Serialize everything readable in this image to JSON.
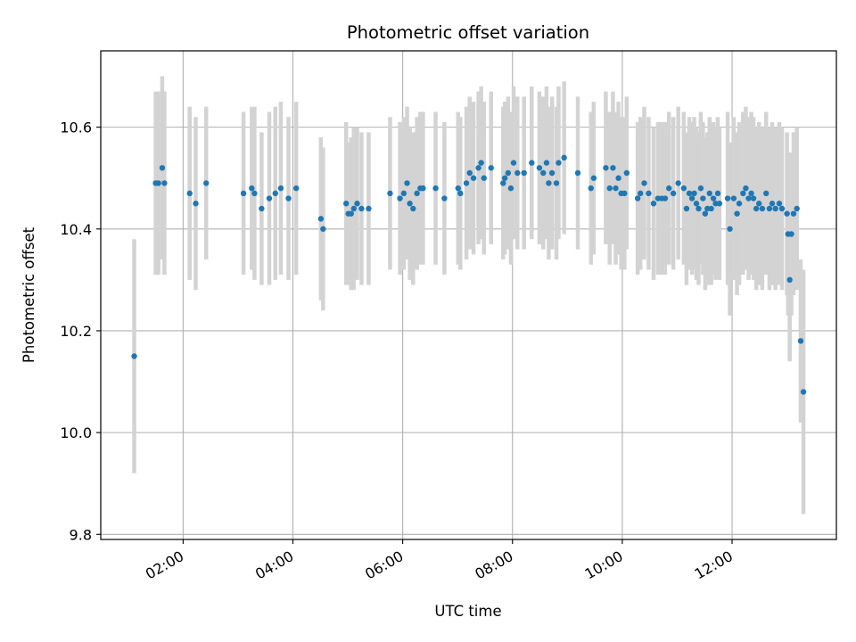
{
  "chart_data": {
    "type": "scatter",
    "title": "Photometric offset variation",
    "xlabel": "UTC time",
    "ylabel": "Photometric offset",
    "grid": true,
    "xlim": [
      0.5,
      13.9
    ],
    "ylim": [
      9.79,
      10.75
    ],
    "x_ticks": [
      {
        "value": 2,
        "label": "02:00"
      },
      {
        "value": 4,
        "label": "04:00"
      },
      {
        "value": 6,
        "label": "06:00"
      },
      {
        "value": 8,
        "label": "08:00"
      },
      {
        "value": 10,
        "label": "10:00"
      },
      {
        "value": 12,
        "label": "12:00"
      }
    ],
    "y_ticks": [
      {
        "value": 9.8,
        "label": "9.8"
      },
      {
        "value": 10.0,
        "label": "10.0"
      },
      {
        "value": 10.2,
        "label": "10.2"
      },
      {
        "value": 10.4,
        "label": "10.4"
      },
      {
        "value": 10.6,
        "label": "10.6"
      }
    ],
    "colors": {
      "point": "#1f77b4",
      "errorbar": "#d3d3d3",
      "grid": "#b0b0b0"
    },
    "points": [
      [
        1.11,
        10.15,
        0.23
      ],
      [
        1.5,
        10.49,
        0.18
      ],
      [
        1.55,
        10.49,
        0.18
      ],
      [
        1.62,
        10.52,
        0.18
      ],
      [
        1.66,
        10.49,
        0.18
      ],
      [
        2.12,
        10.47,
        0.17
      ],
      [
        2.23,
        10.45,
        0.17
      ],
      [
        2.42,
        10.49,
        0.15
      ],
      [
        3.1,
        10.47,
        0.16
      ],
      [
        3.25,
        10.48,
        0.16
      ],
      [
        3.3,
        10.47,
        0.17
      ],
      [
        3.43,
        10.44,
        0.15
      ],
      [
        3.57,
        10.46,
        0.17
      ],
      [
        3.68,
        10.47,
        0.17
      ],
      [
        3.78,
        10.48,
        0.17
      ],
      [
        3.92,
        10.46,
        0.16
      ],
      [
        4.06,
        10.48,
        0.17
      ],
      [
        4.51,
        10.42,
        0.16
      ],
      [
        4.55,
        10.4,
        0.16
      ],
      [
        4.97,
        10.45,
        0.16
      ],
      [
        5.01,
        10.43,
        0.14
      ],
      [
        5.06,
        10.43,
        0.15
      ],
      [
        5.11,
        10.44,
        0.16
      ],
      [
        5.17,
        10.45,
        0.15
      ],
      [
        5.25,
        10.44,
        0.15
      ],
      [
        5.38,
        10.44,
        0.15
      ],
      [
        5.77,
        10.47,
        0.15
      ],
      [
        5.95,
        10.46,
        0.15
      ],
      [
        6.02,
        10.47,
        0.15
      ],
      [
        6.08,
        10.49,
        0.15
      ],
      [
        6.13,
        10.45,
        0.15
      ],
      [
        6.19,
        10.44,
        0.15
      ],
      [
        6.26,
        10.47,
        0.15
      ],
      [
        6.32,
        10.48,
        0.15
      ],
      [
        6.37,
        10.48,
        0.15
      ],
      [
        6.6,
        10.48,
        0.15
      ],
      [
        6.76,
        10.46,
        0.15
      ],
      [
        7.01,
        10.48,
        0.15
      ],
      [
        7.05,
        10.47,
        0.15
      ],
      [
        7.16,
        10.49,
        0.15
      ],
      [
        7.22,
        10.51,
        0.15
      ],
      [
        7.29,
        10.5,
        0.15
      ],
      [
        7.38,
        10.52,
        0.15
      ],
      [
        7.43,
        10.53,
        0.15
      ],
      [
        7.48,
        10.5,
        0.15
      ],
      [
        7.61,
        10.52,
        0.15
      ],
      [
        7.83,
        10.49,
        0.15
      ],
      [
        7.86,
        10.5,
        0.15
      ],
      [
        7.92,
        10.51,
        0.15
      ],
      [
        7.97,
        10.48,
        0.15
      ],
      [
        8.02,
        10.53,
        0.15
      ],
      [
        8.09,
        10.51,
        0.15
      ],
      [
        8.21,
        10.51,
        0.15
      ],
      [
        8.35,
        10.53,
        0.15
      ],
      [
        8.49,
        10.52,
        0.15
      ],
      [
        8.56,
        10.51,
        0.15
      ],
      [
        8.62,
        10.53,
        0.15
      ],
      [
        8.66,
        10.49,
        0.15
      ],
      [
        8.72,
        10.51,
        0.15
      ],
      [
        8.8,
        10.49,
        0.15
      ],
      [
        8.84,
        10.53,
        0.15
      ],
      [
        8.94,
        10.54,
        0.15
      ],
      [
        9.19,
        10.51,
        0.15
      ],
      [
        9.43,
        10.48,
        0.15
      ],
      [
        9.48,
        10.5,
        0.15
      ],
      [
        9.7,
        10.52,
        0.15
      ],
      [
        9.77,
        10.48,
        0.15
      ],
      [
        9.83,
        10.52,
        0.15
      ],
      [
        9.88,
        10.48,
        0.15
      ],
      [
        9.93,
        10.5,
        0.15
      ],
      [
        9.98,
        10.47,
        0.15
      ],
      [
        10.04,
        10.47,
        0.15
      ],
      [
        10.08,
        10.51,
        0.15
      ],
      [
        10.28,
        10.46,
        0.15
      ],
      [
        10.33,
        10.47,
        0.15
      ],
      [
        10.4,
        10.49,
        0.15
      ],
      [
        10.48,
        10.47,
        0.15
      ],
      [
        10.57,
        10.45,
        0.15
      ],
      [
        10.65,
        10.46,
        0.15
      ],
      [
        10.72,
        10.46,
        0.15
      ],
      [
        10.78,
        10.46,
        0.15
      ],
      [
        10.85,
        10.48,
        0.15
      ],
      [
        10.93,
        10.47,
        0.15
      ],
      [
        11.02,
        10.49,
        0.15
      ],
      [
        11.12,
        10.48,
        0.15
      ],
      [
        11.17,
        10.44,
        0.15
      ],
      [
        11.22,
        10.47,
        0.15
      ],
      [
        11.27,
        10.46,
        0.15
      ],
      [
        11.31,
        10.47,
        0.15
      ],
      [
        11.35,
        10.45,
        0.15
      ],
      [
        11.39,
        10.44,
        0.15
      ],
      [
        11.43,
        10.48,
        0.15
      ],
      [
        11.47,
        10.46,
        0.15
      ],
      [
        11.51,
        10.43,
        0.15
      ],
      [
        11.55,
        10.44,
        0.15
      ],
      [
        11.59,
        10.47,
        0.15
      ],
      [
        11.62,
        10.44,
        0.15
      ],
      [
        11.66,
        10.46,
        0.15
      ],
      [
        11.7,
        10.45,
        0.15
      ],
      [
        11.74,
        10.47,
        0.15
      ],
      [
        11.77,
        10.45,
        0.15
      ],
      [
        11.92,
        10.46,
        0.17
      ],
      [
        11.96,
        10.4,
        0.17
      ],
      [
        12.03,
        10.46,
        0.16
      ],
      [
        12.09,
        10.43,
        0.16
      ],
      [
        12.13,
        10.45,
        0.16
      ],
      [
        12.2,
        10.47,
        0.16
      ],
      [
        12.25,
        10.48,
        0.16
      ],
      [
        12.3,
        10.46,
        0.16
      ],
      [
        12.35,
        10.47,
        0.16
      ],
      [
        12.39,
        10.46,
        0.16
      ],
      [
        12.44,
        10.44,
        0.16
      ],
      [
        12.49,
        10.45,
        0.16
      ],
      [
        12.55,
        10.44,
        0.16
      ],
      [
        12.62,
        10.47,
        0.16
      ],
      [
        12.68,
        10.44,
        0.16
      ],
      [
        12.73,
        10.45,
        0.16
      ],
      [
        12.79,
        10.44,
        0.16
      ],
      [
        12.86,
        10.45,
        0.16
      ],
      [
        12.91,
        10.44,
        0.16
      ],
      [
        13.0,
        10.43,
        0.16
      ],
      [
        13.02,
        10.39,
        0.16
      ],
      [
        13.05,
        10.3,
        0.16
      ],
      [
        13.08,
        10.39,
        0.16
      ],
      [
        13.12,
        10.43,
        0.16
      ],
      [
        13.18,
        10.44,
        0.16
      ],
      [
        13.25,
        10.18,
        0.16
      ],
      [
        13.3,
        10.08,
        0.24
      ]
    ]
  }
}
